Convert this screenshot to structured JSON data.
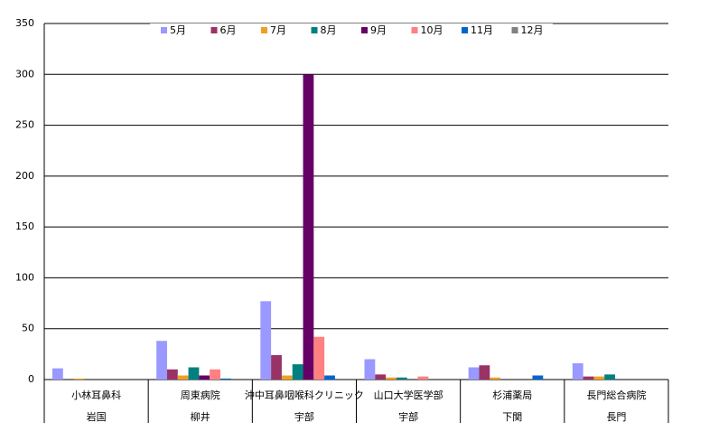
{
  "chart_data": {
    "type": "bar",
    "categories": [
      "小林耳鼻科",
      "周東病院",
      "沖中耳鼻咽喉科クリニック",
      "山口大学医学部",
      "杉浦薬局",
      "長門総合病院"
    ],
    "groups": [
      "岩国",
      "柳井",
      "宇部",
      "宇部",
      "下関",
      "長門"
    ],
    "series": [
      {
        "name": "5月",
        "color": "#9999ff",
        "values": [
          11,
          38,
          77,
          20,
          12,
          16
        ]
      },
      {
        "name": "6月",
        "color": "#993366",
        "values": [
          0,
          10,
          24,
          5,
          14,
          3
        ]
      },
      {
        "name": "7月",
        "color": "#f0a020",
        "values": [
          1,
          4,
          4,
          2,
          2,
          3
        ]
      },
      {
        "name": "8月",
        "color": "#008080",
        "values": [
          0,
          12,
          15,
          2,
          0,
          5
        ]
      },
      {
        "name": "9月",
        "color": "#660066",
        "values": [
          0,
          4,
          300,
          0,
          0,
          0
        ]
      },
      {
        "name": "10月",
        "color": "#ff8080",
        "values": [
          0,
          10,
          42,
          3,
          0,
          0
        ]
      },
      {
        "name": "11月",
        "color": "#0066cc",
        "values": [
          0,
          1,
          4,
          0,
          4,
          0
        ]
      },
      {
        "name": "12月",
        "color": "#808080",
        "values": [
          0,
          0,
          0,
          0,
          0,
          0
        ]
      }
    ],
    "ylim": [
      0,
      350
    ],
    "yticks": [
      0,
      50,
      100,
      150,
      200,
      250,
      300,
      350
    ],
    "grid": true,
    "legend": "top"
  }
}
